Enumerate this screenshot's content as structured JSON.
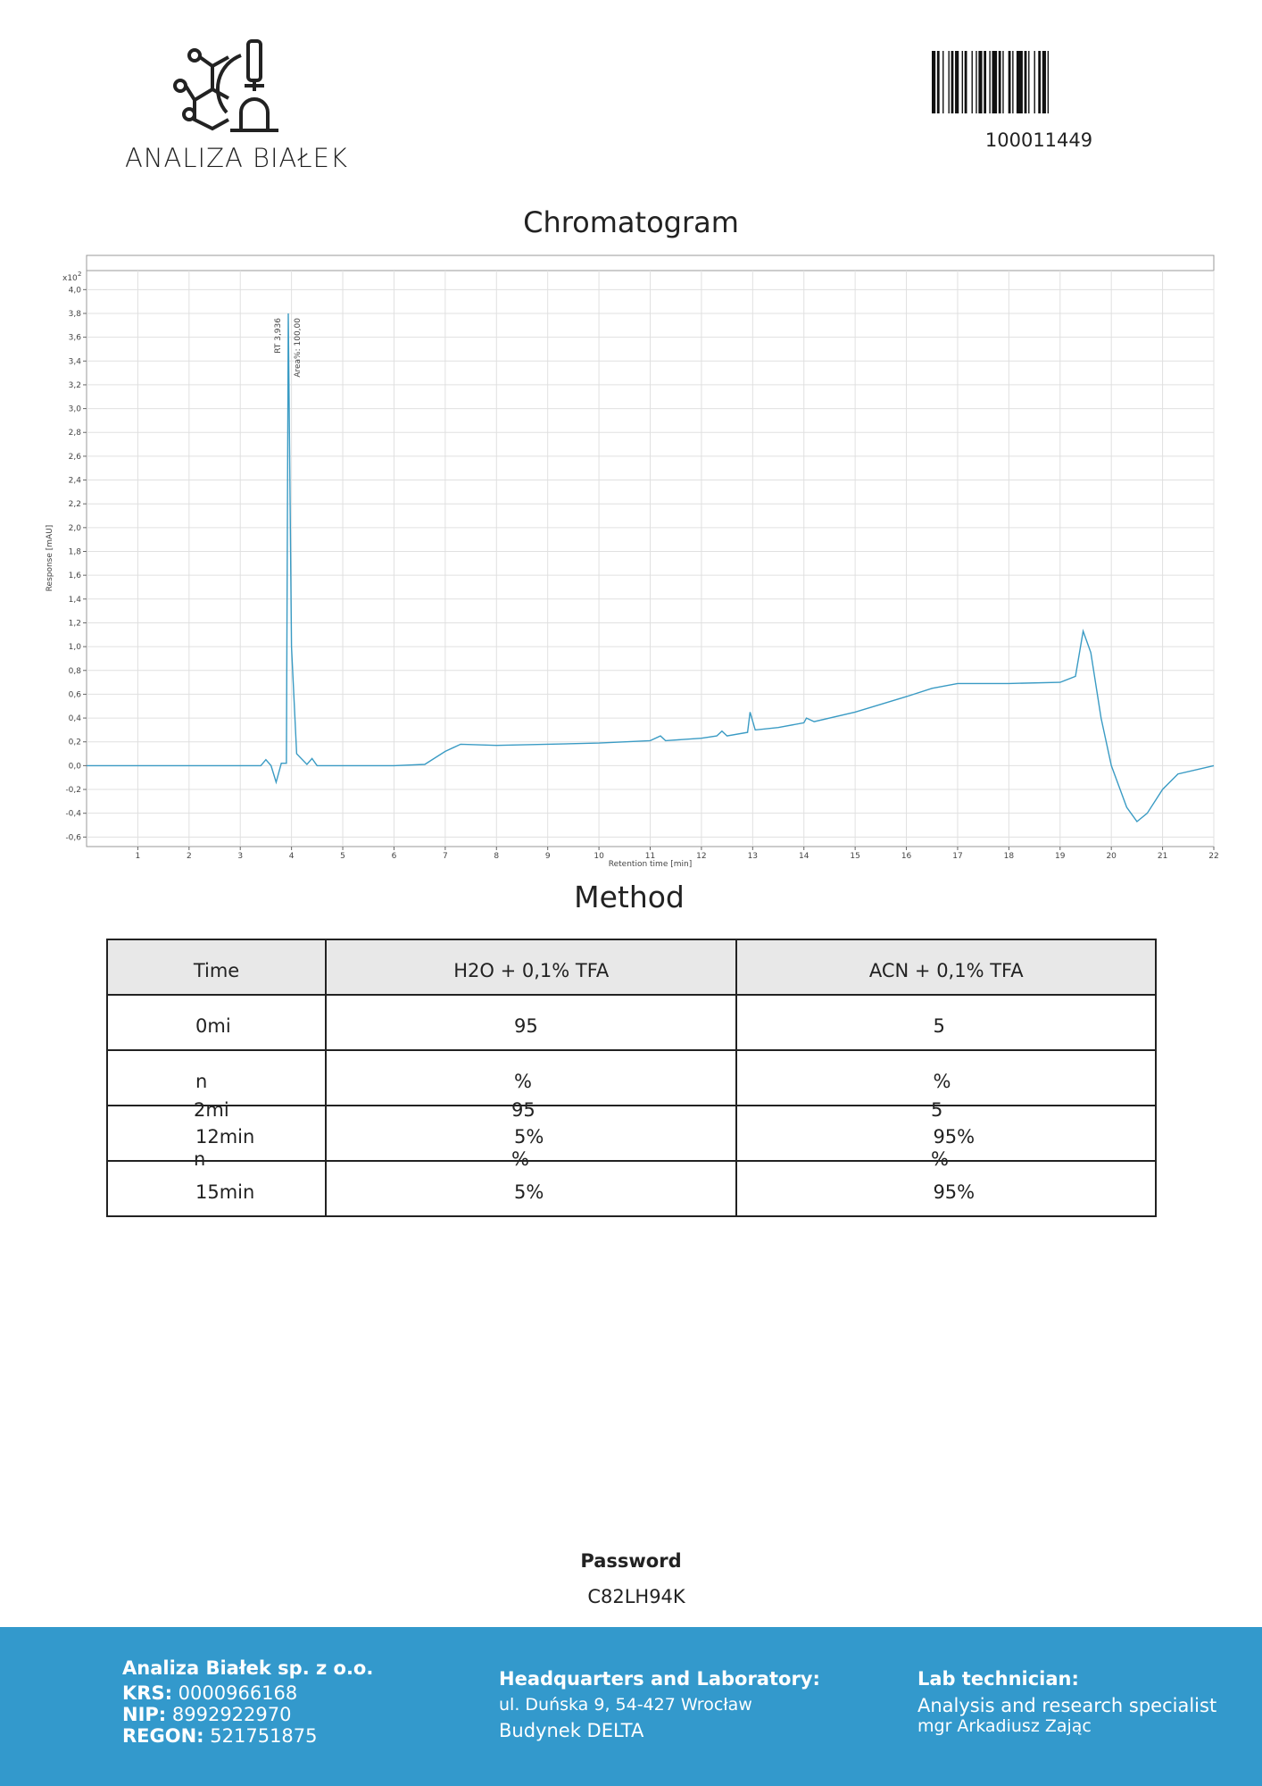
{
  "header": {
    "logo_text": "ANALIZA BIAŁEK",
    "barcode_number": "100011449"
  },
  "chart_title": "Chromatogram",
  "chart_data": {
    "type": "line",
    "y_label": "Response [mAU]",
    "x_label": "Retention time [min]",
    "y_scale_label": "x10",
    "y_scale_exponent": 2,
    "annotations": [
      "RT 3,936",
      "Area%: 100,00"
    ],
    "color": "#3a9bc4",
    "grid": true,
    "xlim": [
      0,
      22
    ],
    "ylim": [
      -0.68,
      4.16
    ],
    "xticks": [
      1,
      2,
      3,
      4,
      5,
      6,
      7,
      8,
      9,
      10,
      11,
      12,
      13,
      14,
      15,
      16,
      17,
      18,
      19,
      20,
      21,
      22
    ],
    "yticks": [
      {
        "value": -0.6,
        "label": "-0,6"
      },
      {
        "value": -0.4,
        "label": "-0,4"
      },
      {
        "value": -0.2,
        "label": "-0,2"
      },
      {
        "value": 0,
        "label": "0,0"
      },
      {
        "value": 0.2,
        "label": "0,2"
      },
      {
        "value": 0.4,
        "label": "0,4"
      },
      {
        "value": 0.6,
        "label": "0,6"
      },
      {
        "value": 0.8,
        "label": "0,8"
      },
      {
        "value": 1,
        "label": "1,0"
      },
      {
        "value": 1.2,
        "label": "1,2"
      },
      {
        "value": 1.4,
        "label": "1,4"
      },
      {
        "value": 1.6,
        "label": "1,6"
      },
      {
        "value": 1.8,
        "label": "1,8"
      },
      {
        "value": 2,
        "label": "2,0"
      },
      {
        "value": 2.2,
        "label": "2,2"
      },
      {
        "value": 2.4,
        "label": "2,4"
      },
      {
        "value": 2.6,
        "label": "2,6"
      },
      {
        "value": 2.8,
        "label": "2,8"
      },
      {
        "value": 3,
        "label": "3,0"
      },
      {
        "value": 3.2,
        "label": "3,2"
      },
      {
        "value": 3.4,
        "label": "3,4"
      },
      {
        "value": 3.6,
        "label": "3,6"
      },
      {
        "value": 3.8,
        "label": "3,8"
      },
      {
        "value": 4,
        "label": "4,0"
      }
    ],
    "x": [
      0,
      0.5,
      1,
      2,
      3,
      3.4,
      3.5,
      3.6,
      3.7,
      3.8,
      3.9,
      3.936,
      4.0,
      4.1,
      4.3,
      4.4,
      4.5,
      5,
      6,
      6.6,
      7,
      7.3,
      8,
      9,
      10,
      11,
      11.2,
      11.3,
      12,
      12.3,
      12.4,
      12.5,
      12.9,
      12.95,
      13.05,
      13.5,
      14,
      14.05,
      14.2,
      15,
      16,
      16.5,
      17,
      18,
      19,
      19.3,
      19.45,
      19.6,
      19.8,
      20,
      20.3,
      20.5,
      20.7,
      21,
      21.3,
      22
    ],
    "values": [
      0,
      0,
      0,
      0,
      0,
      0,
      0.05,
      0,
      -0.14,
      0.02,
      0.02,
      3.8,
      1.0,
      0.1,
      0.01,
      0.06,
      0,
      0,
      0,
      0.01,
      0.12,
      0.18,
      0.17,
      0.18,
      0.19,
      0.21,
      0.25,
      0.21,
      0.23,
      0.25,
      0.29,
      0.25,
      0.28,
      0.45,
      0.3,
      0.32,
      0.36,
      0.4,
      0.37,
      0.45,
      0.58,
      0.65,
      0.69,
      0.69,
      0.7,
      0.75,
      1.13,
      0.95,
      0.4,
      0.0,
      -0.35,
      -0.47,
      -0.4,
      -0.2,
      -0.07,
      0.0
    ]
  },
  "method_title": "Method",
  "table": {
    "header": [
      "Time",
      "H2O + 0,1% TFA",
      "ACN + 0,1% TFA"
    ],
    "rows": [
      [
        "0mi",
        "95",
        "5"
      ],
      [
        "n",
        "%",
        "%"
      ],
      [
        "12min",
        "5%",
        "95%"
      ],
      [
        "15min",
        "5%",
        "95%"
      ]
    ],
    "overlay": [
      [
        "2mi",
        "95",
        "5"
      ],
      [
        "n",
        "%",
        "%"
      ]
    ]
  },
  "password": {
    "label": "Password",
    "value": "C82LH94K"
  },
  "footer": {
    "company": "Analiza Białek sp. z o.o.",
    "ids": [
      {
        "label": "KRS:",
        "value": "0000966168"
      },
      {
        "label": "NIP:",
        "value": "8992922970"
      },
      {
        "label": "REGON:",
        "value": "521751875"
      }
    ],
    "hq_title": "Headquarters and Laboratory:",
    "hq_lines": [
      "ul. Duńska 9, 54-427 Wrocław",
      "Budynek DELTA"
    ],
    "tech_title": "Lab technician:",
    "tech_lines": [
      "Analysis and research specialist",
      "mgr Arkadiusz Zając"
    ]
  }
}
